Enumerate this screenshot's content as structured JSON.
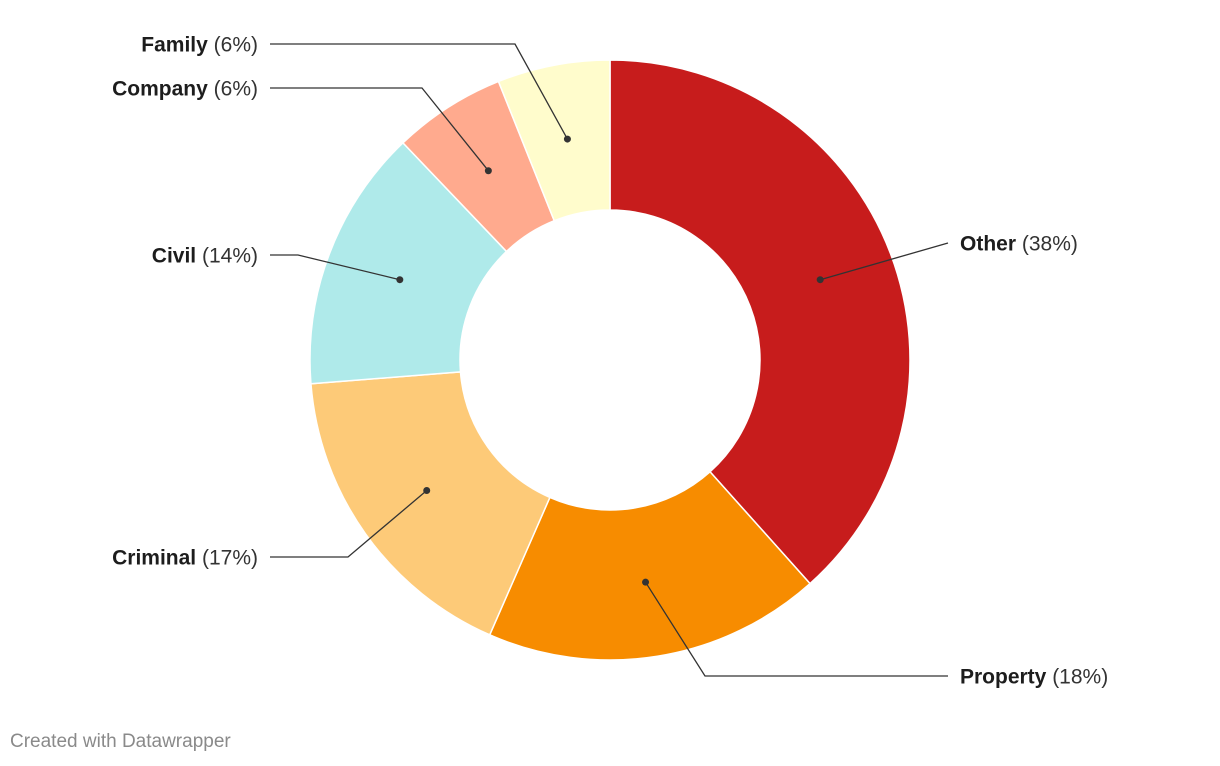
{
  "chart_data": {
    "type": "pie",
    "variant": "donut",
    "start": "12 o'clock, clockwise",
    "labels": [
      "Other",
      "Property",
      "Criminal",
      "Civil",
      "Company",
      "Family"
    ],
    "values": [
      38,
      18,
      17,
      14,
      6,
      6
    ],
    "pct_labels": [
      "(38%)",
      "(18%)",
      "(17%)",
      "(14%)",
      "(6%)",
      "(6%)"
    ],
    "colors": [
      "#c71c1c",
      "#f78c00",
      "#fdca78",
      "#afeaea",
      "#ffaa8e",
      "#fffccc"
    ]
  },
  "footer": {
    "credit": "Created with Datawrapper"
  }
}
